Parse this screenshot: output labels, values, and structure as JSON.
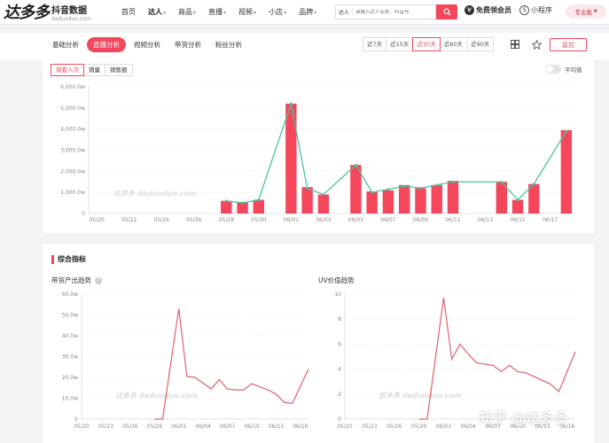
{
  "logo": {
    "big": "达多多",
    "cn": "抖音数据",
    "en": "daduoduo.com"
  },
  "nav": {
    "items": [
      {
        "label": "首页",
        "active": false,
        "chev": false
      },
      {
        "label": "达人",
        "active": true,
        "chev": true
      },
      {
        "label": "商品",
        "active": false,
        "chev": true
      },
      {
        "label": "直播",
        "active": false,
        "chev": true
      },
      {
        "label": "视频",
        "active": false,
        "chev": true
      },
      {
        "label": "小店",
        "active": false,
        "chev": true
      },
      {
        "label": "品牌",
        "active": false,
        "chev": true
      }
    ]
  },
  "search": {
    "type": "达人",
    "placeholder": "请输入达人名称、抖音号",
    "icon": "search-icon"
  },
  "vip": {
    "label": "免费领会员",
    "icon": "vip-icon"
  },
  "mini_program": {
    "label": "小程序",
    "icon": "mini-program-icon"
  },
  "edition": {
    "label": "专业版"
  },
  "tabs": [
    {
      "label": "基础分析",
      "active": false
    },
    {
      "label": "直播分析",
      "active": true
    },
    {
      "label": "视频分析",
      "active": false
    },
    {
      "label": "带货分析",
      "active": false
    },
    {
      "label": "粉丝分析",
      "active": false
    }
  ],
  "ranges": [
    {
      "label": "近7天",
      "active": false
    },
    {
      "label": "近15天",
      "active": false
    },
    {
      "label": "近30天",
      "active": true
    },
    {
      "label": "近60天",
      "active": false
    },
    {
      "label": "近90天",
      "active": false
    }
  ],
  "share_label": "监控",
  "colors": {
    "accent": "#f5475b",
    "line": "#4cc3a1",
    "trend": "#e0606f"
  },
  "main_chart": {
    "metric_tabs": [
      {
        "label": "观看人次",
        "active": true
      },
      {
        "label": "销量",
        "active": false
      },
      {
        "label": "销售额",
        "active": false
      }
    ],
    "avg_label": "平均值",
    "watermark": "达多多 daduoduo.com"
  },
  "section": {
    "title": "综合指标",
    "left_title": "带货产出趋势",
    "right_title": "UV价值趋势",
    "watermark": "达多多 daduoduo.com"
  },
  "footer_watermark": "知乎 @达多多",
  "chart_data": [
    {
      "type": "bar",
      "ylim": [
        0,
        6000
      ],
      "yticks": [
        "0",
        "1,000.0w",
        "2,000.0w",
        "3,000.0w",
        "4,000.0w",
        "5,000.0w",
        "6,000.0w"
      ],
      "ytick_values": [
        0,
        1000,
        2000,
        3000,
        4000,
        5000,
        6000
      ],
      "categories": [
        "05/20",
        "05/21",
        "05/22",
        "05/23",
        "05/24",
        "05/25",
        "05/26",
        "05/27",
        "05/28",
        "05/29",
        "05/30",
        "05/31",
        "06/01",
        "06/02",
        "06/03",
        "06/04",
        "06/05",
        "06/06",
        "06/07",
        "06/08",
        "06/09",
        "06/10",
        "06/11",
        "06/12",
        "06/13",
        "06/14",
        "06/15",
        "06/16",
        "06/17",
        "06/18"
      ],
      "xtick_labels": [
        "05/20",
        "05/22",
        "05/24",
        "05/26",
        "05/28",
        "05/30",
        "06/01",
        "06/03",
        "06/05",
        "06/07",
        "06/09",
        "06/11",
        "06/13",
        "06/15",
        "06/17"
      ],
      "values": [
        null,
        null,
        null,
        null,
        null,
        null,
        null,
        null,
        600,
        550,
        650,
        null,
        5200,
        1250,
        900,
        null,
        2300,
        1050,
        1100,
        1350,
        1200,
        1350,
        1550,
        null,
        null,
        1500,
        650,
        1400,
        null,
        3950
      ],
      "line_series": {
        "values": [
          null,
          null,
          null,
          null,
          null,
          null,
          null,
          null,
          600,
          500,
          650,
          null,
          5200,
          1200,
          900,
          null,
          2300,
          1000,
          1150,
          1300,
          1200,
          1350,
          1500,
          null,
          null,
          1500,
          650,
          1400,
          null,
          3900
        ]
      }
    },
    {
      "type": "line",
      "ylim": [
        0,
        60
      ],
      "yticks": [
        "0",
        "10.0w",
        "20.0w",
        "30.0w",
        "40.0w",
        "50.0w",
        "60.0w"
      ],
      "ytick_values": [
        0,
        10,
        20,
        30,
        40,
        50,
        60
      ],
      "categories": [
        "05/20",
        "05/21",
        "05/22",
        "05/23",
        "05/24",
        "05/25",
        "05/26",
        "05/27",
        "05/28",
        "05/29",
        "05/30",
        "05/31",
        "06/01",
        "06/02",
        "06/03",
        "06/04",
        "06/05",
        "06/06",
        "06/07",
        "06/08",
        "06/09",
        "06/10",
        "06/11",
        "06/12",
        "06/13",
        "06/14",
        "06/15",
        "06/16",
        "06/17"
      ],
      "xtick_labels": [
        "05/20",
        "05/23",
        "05/26",
        "05/29",
        "06/01",
        "06/04",
        "06/07",
        "06/10",
        "06/13",
        "06/16"
      ],
      "values": [
        null,
        null,
        null,
        null,
        null,
        null,
        null,
        null,
        null,
        0,
        0,
        null,
        53,
        20.5,
        20,
        null,
        14.5,
        19,
        14.5,
        14,
        14,
        17,
        null,
        14,
        12,
        8,
        7.5,
        null,
        24
      ]
    },
    {
      "type": "line",
      "ylim": [
        0,
        10
      ],
      "yticks": [
        "0",
        "2",
        "4",
        "6",
        "8",
        "10"
      ],
      "ytick_values": [
        0,
        2,
        4,
        6,
        8,
        10
      ],
      "categories": [
        "05/20",
        "05/21",
        "05/22",
        "05/23",
        "05/24",
        "05/25",
        "05/26",
        "05/27",
        "05/28",
        "05/29",
        "05/30",
        "05/31",
        "06/01",
        "06/02",
        "06/03",
        "06/04",
        "06/05",
        "06/06",
        "06/07",
        "06/08",
        "06/09",
        "06/10",
        "06/11",
        "06/12",
        "06/13",
        "06/14",
        "06/15",
        "06/16",
        "06/17"
      ],
      "xtick_labels": [
        "05/20",
        "05/23",
        "05/26",
        "05/29",
        "06/01",
        "06/04",
        "06/07",
        "06/10",
        "06/13",
        "06/16"
      ],
      "values": [
        null,
        null,
        null,
        null,
        null,
        null,
        null,
        null,
        null,
        0,
        0,
        null,
        9.7,
        4.8,
        6,
        5.2,
        4.5,
        4.4,
        4.3,
        3.8,
        4.3,
        3.8,
        3.7,
        3.4,
        3.1,
        2.8,
        2.2,
        null,
        5.4
      ]
    }
  ]
}
